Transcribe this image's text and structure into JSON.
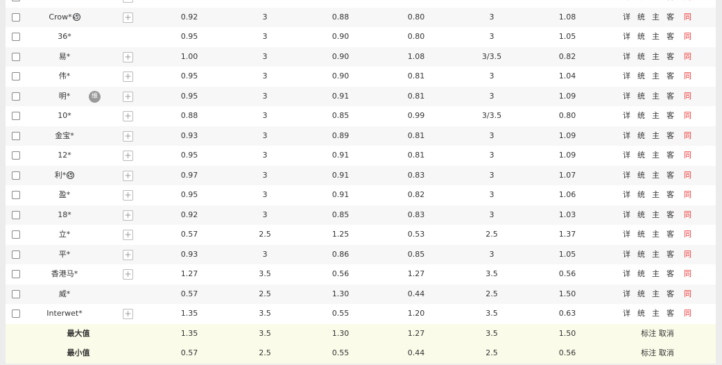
{
  "actions": {
    "detail": "详",
    "stats": "统",
    "home": "主",
    "away": "客",
    "same": "同"
  },
  "partial_row": {
    "has_plus": true
  },
  "rows": [
    {
      "name": "Crow*",
      "ball": true,
      "badge": "",
      "plus": true,
      "v": [
        "0.92",
        "3",
        "0.88",
        "0.80",
        "3",
        "1.08"
      ]
    },
    {
      "name": "36*",
      "ball": false,
      "badge": "",
      "plus": false,
      "v": [
        "0.95",
        "3",
        "0.90",
        "0.80",
        "3",
        "1.05"
      ]
    },
    {
      "name": "易*",
      "ball": false,
      "badge": "",
      "plus": true,
      "v": [
        "1.00",
        "3",
        "0.90",
        "1.08",
        "3/3.5",
        "0.82"
      ]
    },
    {
      "name": "伟*",
      "ball": false,
      "badge": "",
      "plus": true,
      "v": [
        "0.95",
        "3",
        "0.90",
        "0.81",
        "3",
        "1.04"
      ]
    },
    {
      "name": "明*",
      "ball": false,
      "badge": "维",
      "plus": true,
      "v": [
        "0.95",
        "3",
        "0.91",
        "0.81",
        "3",
        "1.09"
      ]
    },
    {
      "name": "10*",
      "ball": false,
      "badge": "",
      "plus": true,
      "v": [
        "0.88",
        "3",
        "0.85",
        "0.99",
        "3/3.5",
        "0.80"
      ]
    },
    {
      "name": "金宝*",
      "ball": false,
      "badge": "",
      "plus": true,
      "v": [
        "0.93",
        "3",
        "0.89",
        "0.81",
        "3",
        "1.09"
      ]
    },
    {
      "name": "12*",
      "ball": false,
      "badge": "",
      "plus": true,
      "v": [
        "0.95",
        "3",
        "0.91",
        "0.81",
        "3",
        "1.09"
      ]
    },
    {
      "name": "利*",
      "ball": true,
      "badge": "",
      "plus": true,
      "v": [
        "0.97",
        "3",
        "0.91",
        "0.83",
        "3",
        "1.07"
      ]
    },
    {
      "name": "盈*",
      "ball": false,
      "badge": "",
      "plus": true,
      "v": [
        "0.95",
        "3",
        "0.91",
        "0.82",
        "3",
        "1.06"
      ]
    },
    {
      "name": "18*",
      "ball": false,
      "badge": "",
      "plus": true,
      "v": [
        "0.92",
        "3",
        "0.85",
        "0.83",
        "3",
        "1.03"
      ]
    },
    {
      "name": "立*",
      "ball": false,
      "badge": "",
      "plus": true,
      "v": [
        "0.57",
        "2.5",
        "1.25",
        "0.53",
        "2.5",
        "1.37"
      ]
    },
    {
      "name": "平*",
      "ball": false,
      "badge": "",
      "plus": true,
      "v": [
        "0.93",
        "3",
        "0.86",
        "0.85",
        "3",
        "1.05"
      ]
    },
    {
      "name": "香港马*",
      "ball": false,
      "badge": "",
      "plus": true,
      "v": [
        "1.27",
        "3.5",
        "0.56",
        "1.27",
        "3.5",
        "0.56"
      ]
    },
    {
      "name": "威*",
      "ball": false,
      "badge": "",
      "plus": false,
      "v": [
        "0.57",
        "2.5",
        "1.30",
        "0.44",
        "2.5",
        "1.50"
      ]
    },
    {
      "name": "Interwet*",
      "ball": false,
      "badge": "",
      "plus": true,
      "v": [
        "1.35",
        "3.5",
        "0.55",
        "1.20",
        "3.5",
        "0.63"
      ]
    }
  ],
  "summary": [
    {
      "label": "最大值",
      "v": [
        "1.35",
        "3.5",
        "1.30",
        "1.27",
        "3.5",
        "1.50"
      ],
      "mark": "标注",
      "cancel": "取消"
    },
    {
      "label": "最小值",
      "v": [
        "0.57",
        "2.5",
        "0.55",
        "0.44",
        "2.5",
        "0.56"
      ],
      "mark": "标注",
      "cancel": "取消"
    }
  ],
  "colors": {
    "same_link": "#e33333",
    "summary_bg": "#fbfbe9",
    "alt_row_bg": "#f7f7f7"
  }
}
